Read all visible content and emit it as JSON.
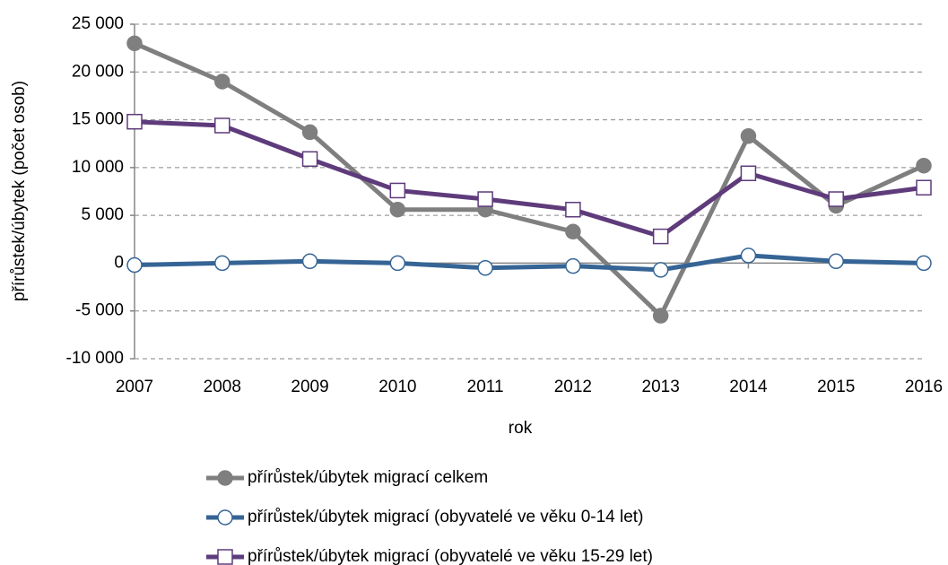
{
  "chart_data": {
    "type": "line",
    "x": [
      2007,
      2008,
      2009,
      2010,
      2011,
      2012,
      2013,
      2014,
      2015,
      2016
    ],
    "xlim": [
      2007,
      2016
    ],
    "xticks": [
      2007,
      2008,
      2009,
      2010,
      2011,
      2012,
      2013,
      2014,
      2015,
      2016
    ],
    "ylim": [
      -10000,
      25000
    ],
    "yticks": [
      {
        "value": -10000,
        "label": "-10 000"
      },
      {
        "value": -5000,
        "label": "-5 000"
      },
      0,
      {
        "value": 5000,
        "label": "5 000"
      },
      {
        "value": 10000,
        "label": "10 000"
      },
      {
        "value": 15000,
        "label": "15 000"
      },
      {
        "value": 20000,
        "label": "20 000"
      },
      {
        "value": 25000,
        "label": "25 000"
      }
    ],
    "xlabel": "rok",
    "ylabel": "přírůstek/úbytek (počet osob)",
    "grid": true,
    "legend": "bottom",
    "series": [
      {
        "name": "přírůstek/úbytek migrací celkem",
        "color": "#7f7f7f",
        "marker": "filled-circle",
        "values": [
          23000,
          19000,
          13700,
          5600,
          5600,
          3300,
          -5500,
          13300,
          6000,
          10200
        ]
      },
      {
        "name": "přírůstek/úbytek migrací (obyvatelé ve věku 0-14 let)",
        "color": "#356495",
        "marker": "hollow-circle",
        "values": [
          -200,
          0,
          200,
          0,
          -500,
          -300,
          -700,
          800,
          200,
          0
        ]
      },
      {
        "name": "přírůstek/úbytek migrací (obyvatelé ve věku 15-29 let)",
        "color": "#5e3b7b",
        "marker": "hollow-square",
        "values": [
          14800,
          14400,
          10900,
          7600,
          6700,
          5600,
          2800,
          9400,
          6700,
          7900
        ]
      }
    ]
  }
}
